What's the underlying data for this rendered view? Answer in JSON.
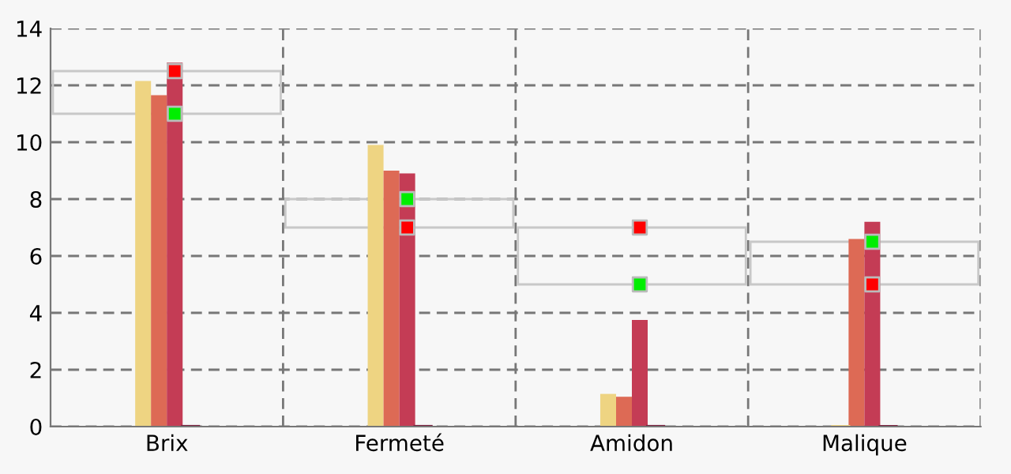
{
  "chart_data": {
    "type": "bar",
    "categories": [
      "Brix",
      "Fermeté",
      "Amidon",
      "Malique"
    ],
    "series": [
      {
        "color": "#c8c8c8",
        "base": [
          11,
          7,
          5,
          5
        ],
        "values": [
          1.5,
          1,
          2,
          1.5
        ]
      },
      {
        "color": "#eed482",
        "values": [
          12.15,
          9.9,
          1.15,
          0
        ]
      },
      {
        "color": "#dd6a55",
        "values": [
          11.65,
          9.0,
          1.05,
          6.6
        ]
      },
      {
        "color": "#c43c55",
        "values": [
          12.8,
          8.9,
          3.75,
          7.2
        ]
      },
      {
        "color": "#7a1f3d",
        "values": [
          0,
          0,
          0,
          0
        ]
      },
      {
        "type": "scatter",
        "color": "#00ee00",
        "marker": "square",
        "x": [
          "Brix",
          "Fermeté",
          "Amidon",
          "Malique"
        ],
        "values": [
          11,
          8,
          5,
          6.5
        ]
      },
      {
        "type": "scatter",
        "color": "#ff0000",
        "marker": "square",
        "x": [
          "Brix",
          "Fermeté",
          "Amidon",
          "Malique"
        ],
        "values": [
          12.5,
          7,
          7,
          5
        ]
      }
    ],
    "ylim": [
      0,
      14
    ],
    "yticks": [
      0,
      2,
      4,
      6,
      8,
      10,
      12,
      14
    ],
    "grid": true
  }
}
